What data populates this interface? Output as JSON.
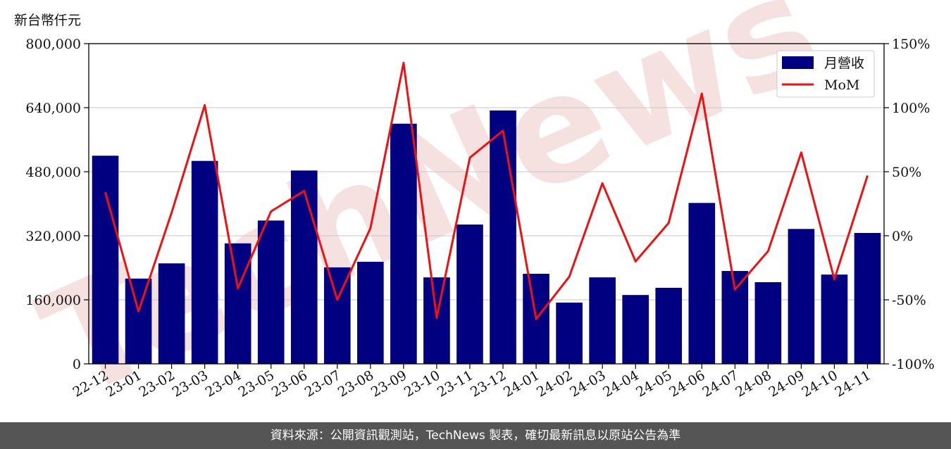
{
  "unit_label": "新台幣仟元",
  "footer": "資料來源：公開資訊觀測站，TechNews 製表，確切最新訊息以原站公告為準",
  "watermark": "TechNews",
  "colors": {
    "bar": "#000080",
    "line": "#ee1111",
    "grid": "#d0d0d0",
    "watermark": "#f4dada"
  },
  "chart_data": {
    "type": "bar",
    "categories": [
      "22-12",
      "23-01",
      "23-02",
      "23-03",
      "23-04",
      "23-05",
      "23-06",
      "23-07",
      "23-08",
      "23-09",
      "23-10",
      "23-11",
      "23-12",
      "24-01",
      "24-02",
      "24-03",
      "24-04",
      "24-05",
      "24-06",
      "24-07",
      "24-08",
      "24-09",
      "24-10",
      "24-11"
    ],
    "series": [
      {
        "name": "月營收",
        "type": "bar",
        "axis": "left",
        "values": [
          520000,
          213000,
          251000,
          507000,
          301000,
          358000,
          483000,
          241000,
          255000,
          600000,
          216000,
          348000,
          633000,
          225000,
          153000,
          216000,
          172000,
          190000,
          402000,
          232000,
          204000,
          337000,
          223000,
          327000
        ]
      },
      {
        "name": "MoM",
        "type": "line",
        "axis": "right",
        "values": [
          34,
          -59,
          18,
          102,
          -41,
          19,
          35,
          -50,
          6,
          135,
          -64,
          61,
          82,
          -65,
          -32,
          41,
          -20,
          10,
          111,
          -42,
          -12,
          65,
          -34,
          47
        ]
      }
    ],
    "left_axis": {
      "min": 0,
      "max": 800000,
      "ticks": [
        "0",
        "160,000",
        "320,000",
        "480,000",
        "640,000",
        "800,000"
      ]
    },
    "right_axis": {
      "min": -100,
      "max": 150,
      "ticks": [
        "-100%",
        "-50%",
        "0%",
        "50%",
        "100%",
        "150%"
      ]
    },
    "grid": true,
    "legend": {
      "position": "top-right",
      "entries": [
        "月營收",
        "MoM"
      ]
    }
  }
}
